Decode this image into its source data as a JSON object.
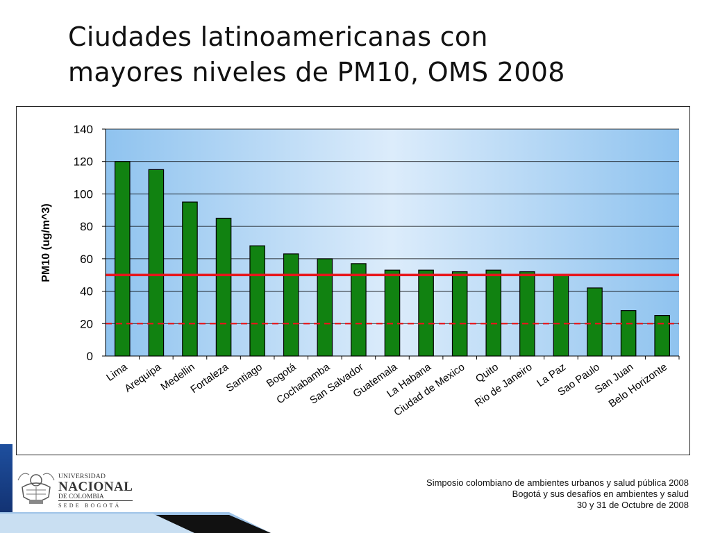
{
  "slide": {
    "title_line1": "Ciudades latinoamericanas con",
    "title_line2": "mayores niveles de PM10, OMS 2008"
  },
  "chart_data": {
    "type": "bar",
    "categories": [
      "Lima",
      "Arequipa",
      "Medellin",
      "Fortaleza",
      "Santiago",
      "Bogotá",
      "Cochabamba",
      "San Salvador",
      "Guatemala",
      "La Habana",
      "Ciudad de Mexico",
      "Quito",
      "Rio de Janeiro",
      "La Paz",
      "Sao Paulo",
      "San Juan",
      "Belo Horizonte"
    ],
    "values": [
      120,
      115,
      95,
      85,
      68,
      63,
      60,
      57,
      53,
      53,
      52,
      53,
      52,
      50,
      42,
      28,
      25
    ],
    "title": "",
    "xlabel": "",
    "ylabel": "PM10 (ug/m^3)",
    "ylim": [
      0,
      140
    ],
    "yticks": [
      0,
      20,
      40,
      60,
      80,
      100,
      120,
      140
    ],
    "reference_lines": [
      {
        "value": 50,
        "style": "solid",
        "color": "#e8151b"
      },
      {
        "value": 20,
        "style": "dashed",
        "color": "#e8151b"
      }
    ],
    "bar_color": "#118211",
    "grid": true,
    "legend": "none"
  },
  "logo": {
    "line1": "UNIVERSIDAD",
    "line2": "NACIONAL",
    "line3": "DE COLOMBIA",
    "line4": "SEDE BOGOTÁ"
  },
  "footer": {
    "line1": "Simposio colombiano de ambientes urbanos y salud pública 2008",
    "line2": "Bogotá y sus desafíos en ambientes y salud",
    "line3": "30 y 31 de Octubre de 2008"
  }
}
